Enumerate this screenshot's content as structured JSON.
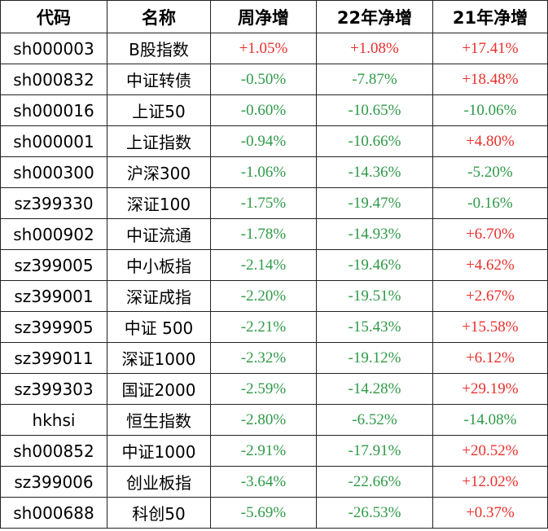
{
  "table": {
    "header": [
      "代码",
      "名称",
      "周净增",
      "22年净增",
      "21年净增"
    ],
    "rows": [
      [
        "sh000003",
        "B股指数",
        "+1.05%",
        "+1.08%",
        "+17.41%"
      ],
      [
        "sh000832",
        "中证转债",
        "-0.50%",
        "-7.87%",
        "+18.48%"
      ],
      [
        "sh000016",
        "上证50",
        "-0.60%",
        "-10.65%",
        "-10.06%"
      ],
      [
        "sh000001",
        "上证指数",
        "-0.94%",
        "-10.66%",
        "+4.80%"
      ],
      [
        "sh000300",
        "沪深300",
        "-1.06%",
        "-14.36%",
        "-5.20%"
      ],
      [
        "sz399330",
        "深证100",
        "-1.75%",
        "-19.47%",
        "-0.16%"
      ],
      [
        "sh000902",
        "中证流通",
        "-1.78%",
        "-14.93%",
        "+6.70%"
      ],
      [
        "sz399005",
        "中小板指",
        "-2.14%",
        "-19.46%",
        "+4.62%"
      ],
      [
        "sz399001",
        "深证成指",
        "-2.20%",
        "-19.51%",
        "+2.67%"
      ],
      [
        "sz399905",
        "中证 500",
        "-2.21%",
        "-15.43%",
        "+15.58%"
      ],
      [
        "sz399011",
        "深证1000",
        "-2.32%",
        "-19.12%",
        "+6.12%"
      ],
      [
        "sz399303",
        "国证2000",
        "-2.59%",
        "-14.28%",
        "+29.19%"
      ],
      [
        "hkhsi",
        "恒生指数",
        "-2.80%",
        "-6.52%",
        "-14.08%"
      ],
      [
        "sh000852",
        "中证1000",
        "-2.91%",
        "-17.91%",
        "+20.52%"
      ],
      [
        "sz399006",
        "创业板指",
        "-3.64%",
        "-22.66%",
        "+12.02%"
      ],
      [
        "sh000688",
        "科创50",
        "-5.69%",
        "-26.53%",
        "+0.37%"
      ]
    ]
  }
}
